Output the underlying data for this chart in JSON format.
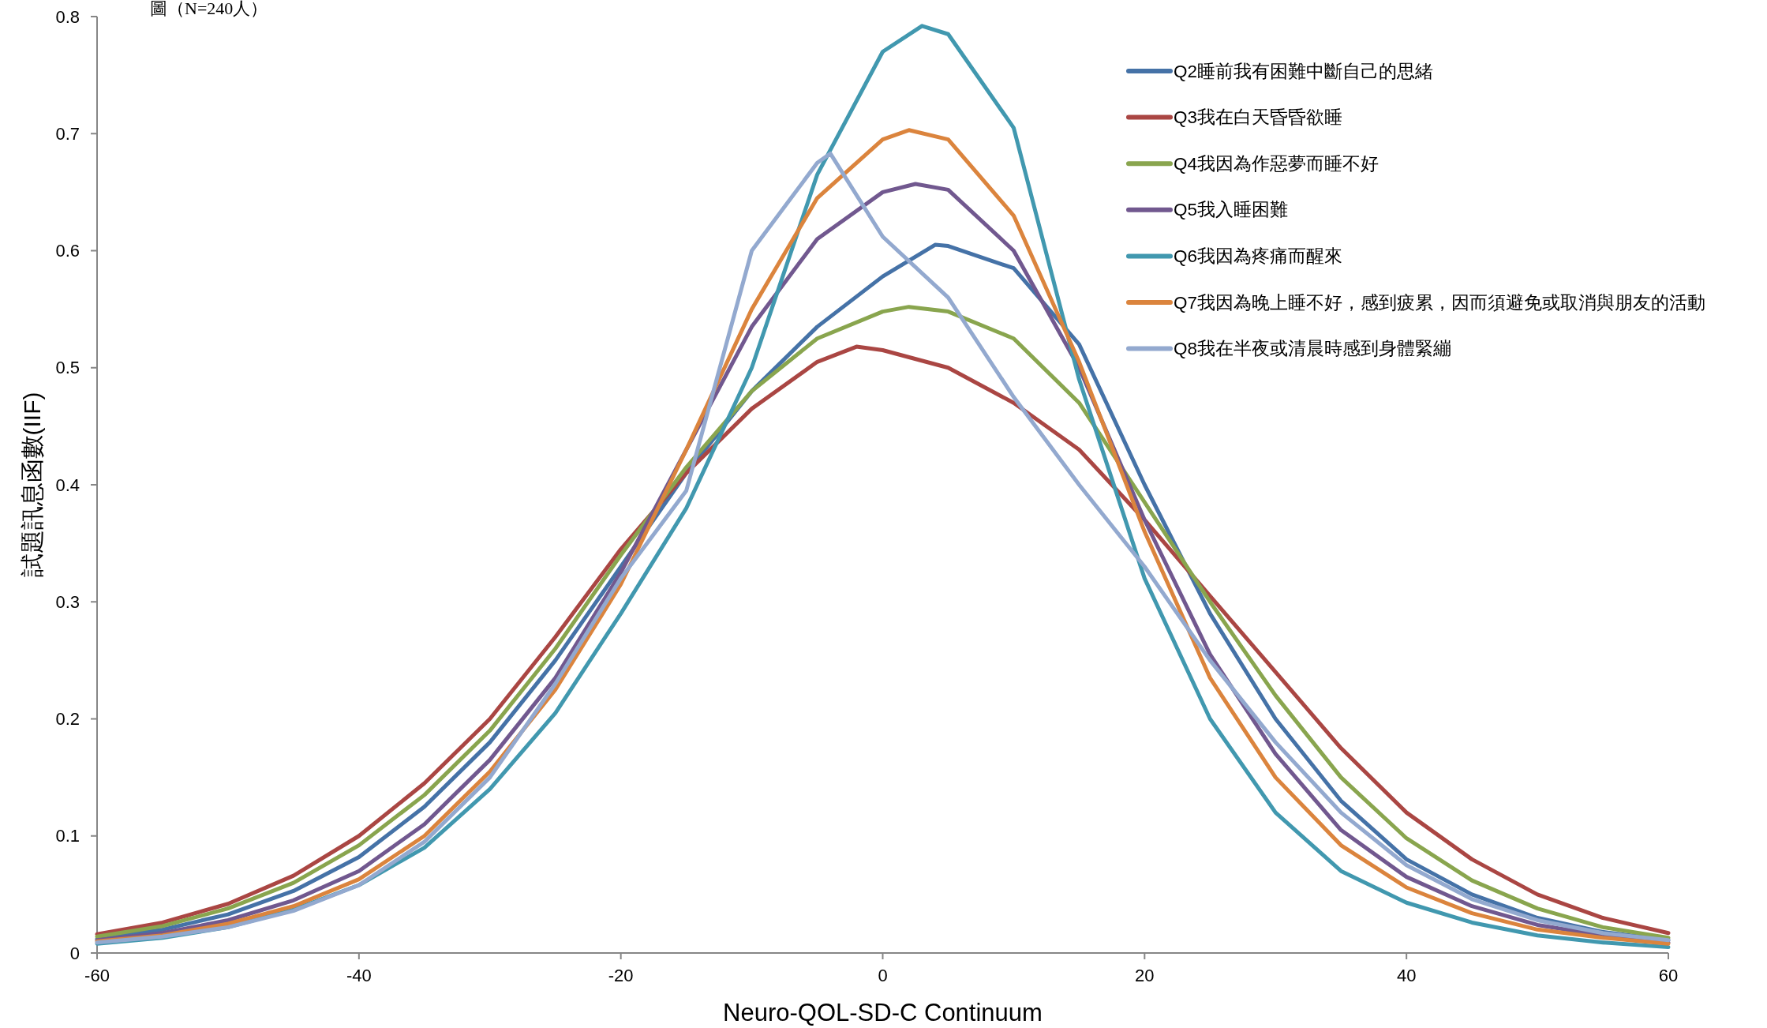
{
  "chart_data": {
    "type": "line",
    "ylabel": "試題訊息函數(IIF)",
    "xlabel": "Neuro-QOL-SD-C Continuum",
    "annotations": [
      "圖（N=240人）"
    ],
    "xlim": [
      -60,
      60
    ],
    "xticks": [
      -60,
      -40,
      -20,
      0,
      20,
      40,
      60
    ],
    "ylim": [
      0,
      0.8
    ],
    "yticks": [
      0,
      0.1,
      0.2,
      0.3,
      0.4,
      0.5,
      0.6,
      0.7,
      0.8
    ],
    "grid": false,
    "legend": "top right",
    "marker": "none",
    "line_style": "solid",
    "series": [
      {
        "name": "Q2睡前我有困難中斷自己的思緒",
        "color": "#4572a7",
        "x": [
          -60,
          -55,
          -50,
          -45,
          -40,
          -35,
          -30,
          -25,
          -20,
          -15,
          -10,
          -5,
          0,
          4,
          5,
          10,
          15,
          20,
          25,
          30,
          35,
          40,
          45,
          50,
          55,
          60
        ],
        "values": [
          0.012,
          0.02,
          0.033,
          0.053,
          0.082,
          0.125,
          0.18,
          0.25,
          0.33,
          0.41,
          0.48,
          0.535,
          0.578,
          0.605,
          0.604,
          0.585,
          0.52,
          0.4,
          0.29,
          0.2,
          0.13,
          0.08,
          0.05,
          0.03,
          0.018,
          0.011
        ]
      },
      {
        "name": "Q3我在白天昏昏欲睡",
        "color": "#aa4643",
        "x": [
          -60,
          -55,
          -50,
          -45,
          -40,
          -35,
          -30,
          -25,
          -20,
          -15,
          -10,
          -5,
          -2,
          0,
          5,
          10,
          15,
          20,
          25,
          30,
          35,
          40,
          45,
          50,
          55,
          60
        ],
        "values": [
          0.016,
          0.026,
          0.042,
          0.066,
          0.1,
          0.145,
          0.2,
          0.27,
          0.345,
          0.41,
          0.465,
          0.505,
          0.518,
          0.515,
          0.5,
          0.47,
          0.43,
          0.37,
          0.305,
          0.24,
          0.175,
          0.12,
          0.08,
          0.05,
          0.03,
          0.017
        ]
      },
      {
        "name": "Q4我因為作惡夢而睡不好",
        "color": "#89a54e",
        "x": [
          -60,
          -55,
          -50,
          -45,
          -40,
          -35,
          -30,
          -25,
          -20,
          -15,
          -10,
          -5,
          0,
          2,
          5,
          10,
          15,
          20,
          25,
          30,
          35,
          40,
          45,
          50,
          55,
          60
        ],
        "values": [
          0.014,
          0.023,
          0.038,
          0.06,
          0.092,
          0.135,
          0.19,
          0.26,
          0.34,
          0.415,
          0.48,
          0.525,
          0.548,
          0.552,
          0.548,
          0.525,
          0.47,
          0.385,
          0.3,
          0.22,
          0.15,
          0.098,
          0.062,
          0.038,
          0.022,
          0.013
        ]
      },
      {
        "name": "Q5我入睡困難",
        "color": "#71588f",
        "x": [
          -60,
          -55,
          -50,
          -45,
          -40,
          -35,
          -30,
          -25,
          -20,
          -15,
          -10,
          -5,
          0,
          2.5,
          5,
          10,
          15,
          20,
          25,
          30,
          35,
          40,
          45,
          50,
          55,
          60
        ],
        "values": [
          0.011,
          0.017,
          0.028,
          0.045,
          0.07,
          0.11,
          0.165,
          0.235,
          0.325,
          0.43,
          0.535,
          0.61,
          0.65,
          0.657,
          0.652,
          0.6,
          0.5,
          0.37,
          0.255,
          0.17,
          0.105,
          0.065,
          0.04,
          0.024,
          0.015,
          0.009
        ]
      },
      {
        "name": "Q6我因為疼痛而醒來",
        "color": "#4198af",
        "x": [
          -60,
          -55,
          -50,
          -45,
          -40,
          -35,
          -30,
          -25,
          -20,
          -15,
          -10,
          -5,
          0,
          3,
          5,
          10,
          15,
          20,
          25,
          30,
          35,
          40,
          45,
          50,
          55,
          60
        ],
        "values": [
          0.008,
          0.013,
          0.022,
          0.037,
          0.058,
          0.09,
          0.14,
          0.205,
          0.29,
          0.38,
          0.5,
          0.665,
          0.77,
          0.792,
          0.785,
          0.705,
          0.49,
          0.32,
          0.2,
          0.12,
          0.07,
          0.043,
          0.026,
          0.015,
          0.009,
          0.005
        ]
      },
      {
        "name": "Q7我因為晚上睡不好，感到疲累，因而須避免或取消與朋友的活動",
        "color": "#db843d",
        "x": [
          -60,
          -55,
          -50,
          -45,
          -40,
          -35,
          -30,
          -25,
          -20,
          -15,
          -10,
          -5,
          0,
          2,
          5,
          10,
          15,
          20,
          25,
          30,
          35,
          40,
          45,
          50,
          55,
          60
        ],
        "values": [
          0.01,
          0.015,
          0.025,
          0.04,
          0.063,
          0.1,
          0.155,
          0.225,
          0.315,
          0.43,
          0.55,
          0.645,
          0.695,
          0.703,
          0.695,
          0.63,
          0.505,
          0.36,
          0.235,
          0.15,
          0.092,
          0.056,
          0.034,
          0.02,
          0.013,
          0.008
        ]
      },
      {
        "name": "Q8我在半夜或清晨時感到身體緊繃",
        "color": "#93a9cf",
        "x": [
          -60,
          -55,
          -50,
          -45,
          -40,
          -35,
          -30,
          -25,
          -20,
          -15,
          -10,
          -5,
          -4,
          0,
          5,
          10,
          15,
          20,
          25,
          30,
          35,
          40,
          45,
          50,
          55,
          60
        ],
        "values": [
          0.009,
          0.014,
          0.022,
          0.036,
          0.058,
          0.095,
          0.15,
          0.23,
          0.32,
          0.395,
          0.6,
          0.675,
          0.683,
          0.612,
          0.56,
          0.475,
          0.4,
          0.33,
          0.25,
          0.18,
          0.12,
          0.075,
          0.046,
          0.028,
          0.017,
          0.011
        ]
      }
    ]
  }
}
